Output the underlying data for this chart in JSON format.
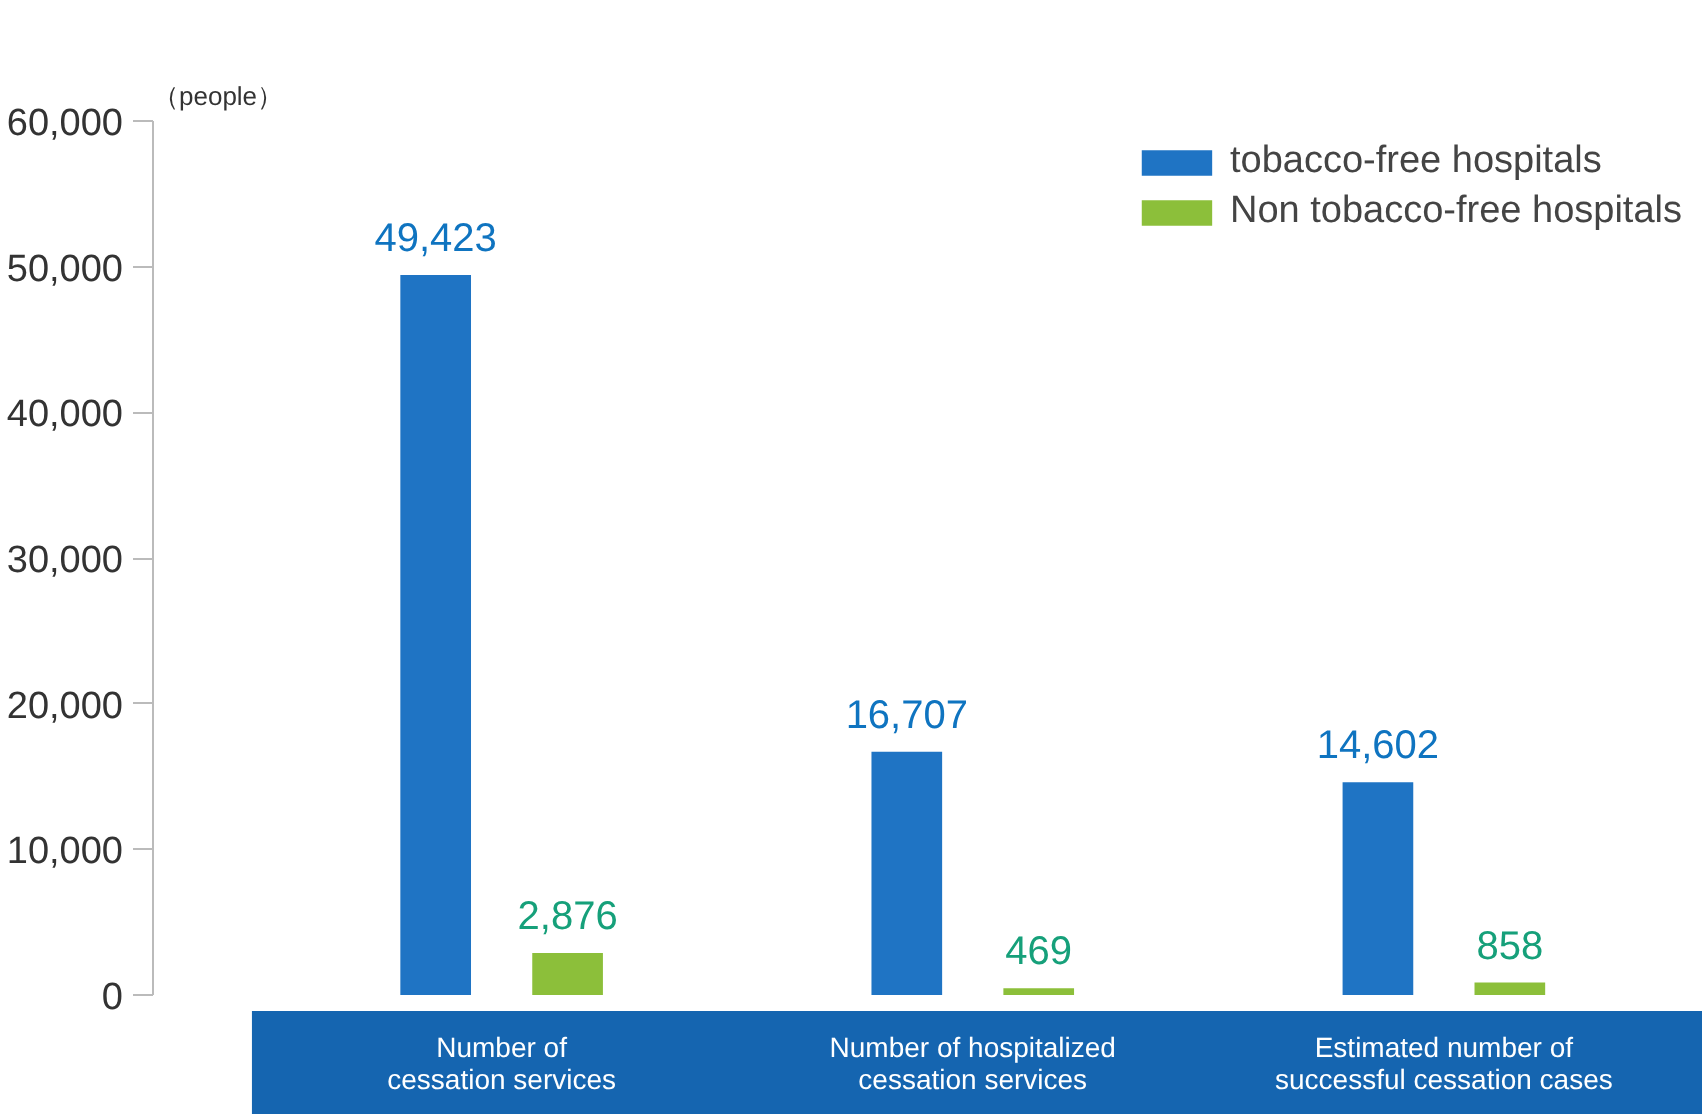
{
  "chart_data": {
    "type": "bar",
    "ylabel": "（people）",
    "categories": [
      "Number of\ncessation services",
      "Number of hospitalized\ncessation services",
      "Estimated number of\nsuccessful cessation cases"
    ],
    "series": [
      {
        "name": "tobacco-free hospitals",
        "color": "#1f74c4",
        "values": [
          49423,
          16707,
          14602
        ],
        "value_labels": [
          "49,423",
          "16,707",
          "14,602"
        ]
      },
      {
        "name": "Non tobacco-free hospitals",
        "color": "#8cbf3a",
        "values": [
          2876,
          469,
          858
        ],
        "value_labels": [
          "2,876",
          "469",
          "858"
        ]
      }
    ],
    "ylim": [
      0,
      60000
    ],
    "yticks": [
      {
        "value": 0,
        "label": "0"
      },
      {
        "value": 10000,
        "label": "10,000"
      },
      {
        "value": 20000,
        "label": "20,000"
      },
      {
        "value": 30000,
        "label": "30,000"
      },
      {
        "value": 40000,
        "label": "40,000"
      },
      {
        "value": 50000,
        "label": "50,000"
      },
      {
        "value": 60000,
        "label": "60,000"
      }
    ],
    "grid": false,
    "legend": "top right"
  }
}
